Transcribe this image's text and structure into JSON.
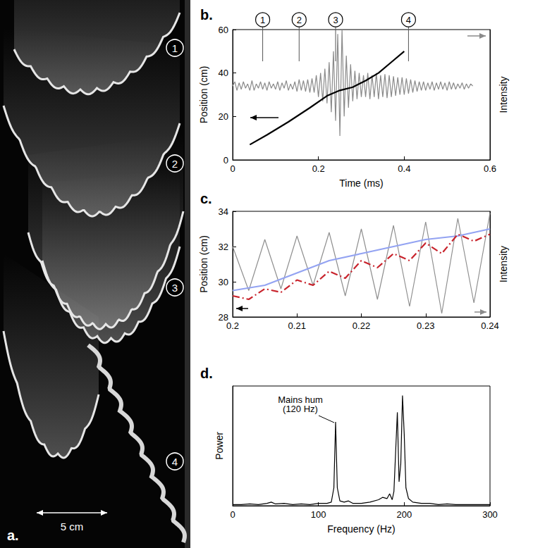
{
  "image": {
    "panel": "a.",
    "markers": [
      "1",
      "2",
      "3",
      "4"
    ],
    "scale_bar": "5 cm"
  },
  "chart_data": [
    {
      "panel": "b.",
      "type": "line",
      "x_label": "Time (ms)",
      "y_label": "Position (cm)",
      "y2_label": "Intensity",
      "xlim": [
        0,
        0.6
      ],
      "xticks": [
        0,
        0.2,
        0.4,
        0.6
      ],
      "ylim": [
        0,
        60
      ],
      "yticks": [
        0,
        20,
        40,
        60
      ],
      "y2lim": [
        0,
        60
      ],
      "grid": false,
      "markers": [
        {
          "label": "1",
          "x": 0.07
        },
        {
          "label": "2",
          "x": 0.155
        },
        {
          "label": "3",
          "x": 0.24
        },
        {
          "label": "4",
          "x": 0.41
        }
      ],
      "series": [
        {
          "color": "#8a8a8a",
          "line_style": "solid",
          "axis": "y2",
          "x": [
            0,
            0.005,
            0.01,
            0.015,
            0.02,
            0.025,
            0.03,
            0.035,
            0.04,
            0.045,
            0.05,
            0.055,
            0.06,
            0.065,
            0.07,
            0.075,
            0.08,
            0.085,
            0.09,
            0.095,
            0.1,
            0.105,
            0.11,
            0.115,
            0.12,
            0.125,
            0.13,
            0.135,
            0.14,
            0.145,
            0.15,
            0.155,
            0.16,
            0.165,
            0.17,
            0.175,
            0.18,
            0.185,
            0.19,
            0.195,
            0.2,
            0.205,
            0.21,
            0.215,
            0.22,
            0.225,
            0.23,
            0.235,
            0.24,
            0.245,
            0.25,
            0.255,
            0.26,
            0.265,
            0.27,
            0.275,
            0.28,
            0.285,
            0.29,
            0.295,
            0.3,
            0.305,
            0.31,
            0.315,
            0.32,
            0.325,
            0.33,
            0.335,
            0.34,
            0.345,
            0.35,
            0.355,
            0.36,
            0.365,
            0.37,
            0.375,
            0.38,
            0.385,
            0.39,
            0.395,
            0.4,
            0.405,
            0.41,
            0.415,
            0.42,
            0.425,
            0.43,
            0.435,
            0.44,
            0.445,
            0.45,
            0.455,
            0.46,
            0.465,
            0.47,
            0.475,
            0.48,
            0.485,
            0.49,
            0.495,
            0.5,
            0.505,
            0.51,
            0.515,
            0.52,
            0.525,
            0.53,
            0.535,
            0.54,
            0.545,
            0.55,
            0.555,
            0.56
          ],
          "values": [
            34,
            36,
            32,
            35.5,
            32.5,
            36,
            33,
            35,
            32,
            36.5,
            32,
            35,
            33,
            36,
            32.5,
            35.5,
            32,
            36,
            33,
            35,
            32.5,
            36,
            32,
            35.5,
            33,
            36.5,
            32,
            35,
            32.5,
            36,
            31.5,
            37,
            32,
            36.5,
            31.5,
            37,
            31,
            37.5,
            31,
            39,
            29,
            40,
            27,
            42,
            26,
            45,
            22,
            50,
            18,
            58,
            11,
            60,
            20,
            48,
            24,
            44,
            27,
            41,
            28,
            40,
            29,
            39,
            29,
            40,
            28,
            39,
            29,
            40,
            28,
            39,
            29,
            39.5,
            28.5,
            39,
            29,
            38.5,
            29.5,
            38,
            30,
            38,
            30,
            37.5,
            30.5,
            37,
            31,
            36.5,
            31.5,
            36,
            32,
            36,
            32,
            35.5,
            32.5,
            36,
            32,
            35.5,
            32.5,
            36,
            32.5,
            35.5,
            32,
            36,
            32.5,
            35.5,
            32.5,
            35,
            33,
            35.5,
            32.5,
            35,
            33,
            35,
            34
          ]
        },
        {
          "color": "#000000",
          "line_style": "solid",
          "x": [
            0.04,
            0.08,
            0.13,
            0.18,
            0.22,
            0.25,
            0.28,
            0.31,
            0.34,
            0.37,
            0.4
          ],
          "values": [
            7,
            11.5,
            17.5,
            24,
            29.5,
            32,
            33.5,
            36.5,
            40,
            45,
            50
          ]
        }
      ]
    },
    {
      "panel": "c.",
      "type": "line",
      "y_label": "Position (cm)",
      "y2_label": "Intensity",
      "xlim": [
        0.2,
        0.24
      ],
      "xticks": [
        0.2,
        0.21,
        0.22,
        0.23,
        0.24
      ],
      "ylim": [
        28,
        34
      ],
      "yticks": [
        28,
        30,
        32,
        34
      ],
      "y2lim": [
        28,
        34
      ],
      "grid": false,
      "series": [
        {
          "color": "#8f8f8f",
          "line_style": "solid",
          "axis": "y2",
          "x": [
            0.2,
            0.2025,
            0.205,
            0.2075,
            0.21,
            0.2125,
            0.215,
            0.2175,
            0.22,
            0.2225,
            0.225,
            0.2275,
            0.23,
            0.2325,
            0.235,
            0.2375,
            0.24
          ],
          "values": [
            32,
            29.5,
            32.4,
            29.6,
            32.6,
            29.8,
            32.8,
            29.2,
            33,
            29,
            33.2,
            28.6,
            33.4,
            28.2,
            33.6,
            28.8,
            33.9
          ]
        },
        {
          "color": "#93a3f2",
          "line_style": "solid",
          "x": [
            0.2,
            0.205,
            0.21,
            0.215,
            0.22,
            0.225,
            0.23,
            0.235,
            0.24
          ],
          "values": [
            29.5,
            29.8,
            30.5,
            31.2,
            31.6,
            32,
            32.4,
            32.6,
            33
          ]
        },
        {
          "color": "#c8232c",
          "line_style": "dashdot",
          "x": [
            0.2,
            0.2025,
            0.205,
            0.2075,
            0.21,
            0.2125,
            0.215,
            0.2175,
            0.22,
            0.2225,
            0.225,
            0.2275,
            0.23,
            0.2325,
            0.235,
            0.2375,
            0.24
          ],
          "values": [
            29.2,
            29,
            29.6,
            29.4,
            30.1,
            29.8,
            30.6,
            30.2,
            31.2,
            30.8,
            31.6,
            31.2,
            32.2,
            31.6,
            32.7,
            32.3,
            32.7
          ]
        }
      ]
    },
    {
      "panel": "d.",
      "type": "line",
      "x_label": "Frequency (Hz)",
      "y_label": "Power",
      "xlim": [
        0,
        300
      ],
      "xticks": [
        0,
        100,
        200,
        300
      ],
      "ylim": [
        0,
        1
      ],
      "tick_labels": "x",
      "grid": false,
      "annotations": [
        {
          "text": "Mains hum\n(120 Hz)",
          "x": 120,
          "y": 0.7
        }
      ],
      "series": [
        {
          "color": "#000000",
          "line_style": "solid",
          "x": [
            0,
            10,
            20,
            30,
            40,
            45,
            50,
            60,
            70,
            80,
            90,
            100,
            110,
            115,
            118,
            120,
            122,
            125,
            130,
            135,
            140,
            150,
            160,
            170,
            175,
            180,
            183,
            186,
            188,
            190,
            192,
            194,
            196,
            198,
            200,
            202,
            205,
            210,
            220,
            230,
            240,
            250,
            260,
            270,
            280,
            290,
            300
          ],
          "values": [
            0.01,
            0.01,
            0.015,
            0.01,
            0.02,
            0.03,
            0.015,
            0.02,
            0.01,
            0.015,
            0.01,
            0.02,
            0.02,
            0.03,
            0.15,
            0.7,
            0.15,
            0.04,
            0.03,
            0.04,
            0.02,
            0.02,
            0.03,
            0.05,
            0.07,
            0.06,
            0.1,
            0.05,
            0.12,
            0.45,
            0.78,
            0.2,
            0.35,
            0.92,
            0.6,
            0.15,
            0.06,
            0.03,
            0.02,
            0.02,
            0.01,
            0.015,
            0.01,
            0.01,
            0.01,
            0.01,
            0.01
          ]
        }
      ]
    }
  ]
}
